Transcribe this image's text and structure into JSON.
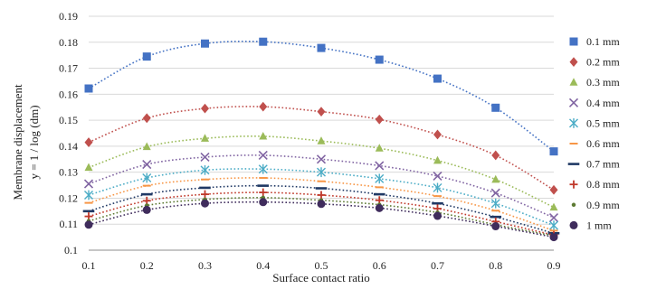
{
  "chart_data": {
    "type": "line",
    "title": "",
    "xlabel": "Surface contact ratio",
    "ylabel_lines": [
      "Membrane displacement",
      "y = 1 / log (dm)"
    ],
    "x": [
      0.1,
      0.2,
      0.3,
      0.4,
      0.5,
      0.6,
      0.7,
      0.8,
      0.9
    ],
    "x_tick_labels": [
      "0.1",
      "0.2",
      "0.3",
      "0.4",
      "0.5",
      "0.6",
      "0.7",
      "0.8",
      "0.9"
    ],
    "xlim": [
      0.1,
      0.9
    ],
    "ylim": [
      0.1,
      0.19
    ],
    "y_ticks": [
      0.1,
      0.11,
      0.12,
      0.13,
      0.14,
      0.15,
      0.16,
      0.17,
      0.18,
      0.19
    ],
    "y_tick_labels": [
      "0.1",
      "0.11",
      "0.12",
      "0.13",
      "0.14",
      "0.15",
      "0.16",
      "0.17",
      "0.18",
      "0.19"
    ],
    "grid": "horizontal",
    "line_style": "dotted",
    "legend_position": "right",
    "series": [
      {
        "name": "0.1 mm",
        "color": "#4472C4",
        "marker": "square",
        "values": [
          0.1622,
          0.1745,
          0.1795,
          0.1802,
          0.1778,
          0.1733,
          0.166,
          0.1548,
          0.138
        ]
      },
      {
        "name": "0.2 mm",
        "color": "#C0504D",
        "marker": "diamond",
        "values": [
          0.1415,
          0.1508,
          0.1545,
          0.1552,
          0.1533,
          0.1503,
          0.1445,
          0.1365,
          0.1232
        ]
      },
      {
        "name": "0.3 mm",
        "color": "#9BBB59",
        "marker": "triangle",
        "values": [
          0.1318,
          0.1398,
          0.143,
          0.1438,
          0.142,
          0.1392,
          0.1345,
          0.1272,
          0.1165
        ]
      },
      {
        "name": "0.4 mm",
        "color": "#8064A2",
        "marker": "x",
        "values": [
          0.1255,
          0.133,
          0.1358,
          0.1365,
          0.135,
          0.1325,
          0.1285,
          0.122,
          0.1125
        ]
      },
      {
        "name": "0.5 mm",
        "color": "#4BACC6",
        "marker": "star",
        "values": [
          0.1212,
          0.1278,
          0.1308,
          0.1312,
          0.13,
          0.1275,
          0.124,
          0.118,
          0.1095
        ]
      },
      {
        "name": "0.6 mm",
        "color": "#F79646",
        "marker": "dash",
        "values": [
          0.1182,
          0.1248,
          0.1272,
          0.1278,
          0.1265,
          0.1242,
          0.1208,
          0.1152,
          0.1075
        ]
      },
      {
        "name": "0.7 mm",
        "color": "#1F3864",
        "marker": "longdash",
        "values": [
          0.115,
          0.1215,
          0.124,
          0.1248,
          0.1238,
          0.1215,
          0.118,
          0.1128,
          0.1065
        ]
      },
      {
        "name": "0.8 mm",
        "color": "#C0392B",
        "marker": "plus",
        "values": [
          0.113,
          0.119,
          0.1215,
          0.1222,
          0.1212,
          0.1192,
          0.116,
          0.111,
          0.1058
        ]
      },
      {
        "name": "0.9 mm",
        "color": "#5D7A33",
        "marker": "smalldot",
        "values": [
          0.1112,
          0.1172,
          0.1195,
          0.1202,
          0.1192,
          0.1175,
          0.1145,
          0.1098,
          0.1055
        ]
      },
      {
        "name": "1  mm",
        "color": "#3F2C5C",
        "marker": "circle",
        "values": [
          0.1098,
          0.1155,
          0.118,
          0.1185,
          0.1178,
          0.1162,
          0.1132,
          0.1092,
          0.105
        ]
      }
    ]
  }
}
